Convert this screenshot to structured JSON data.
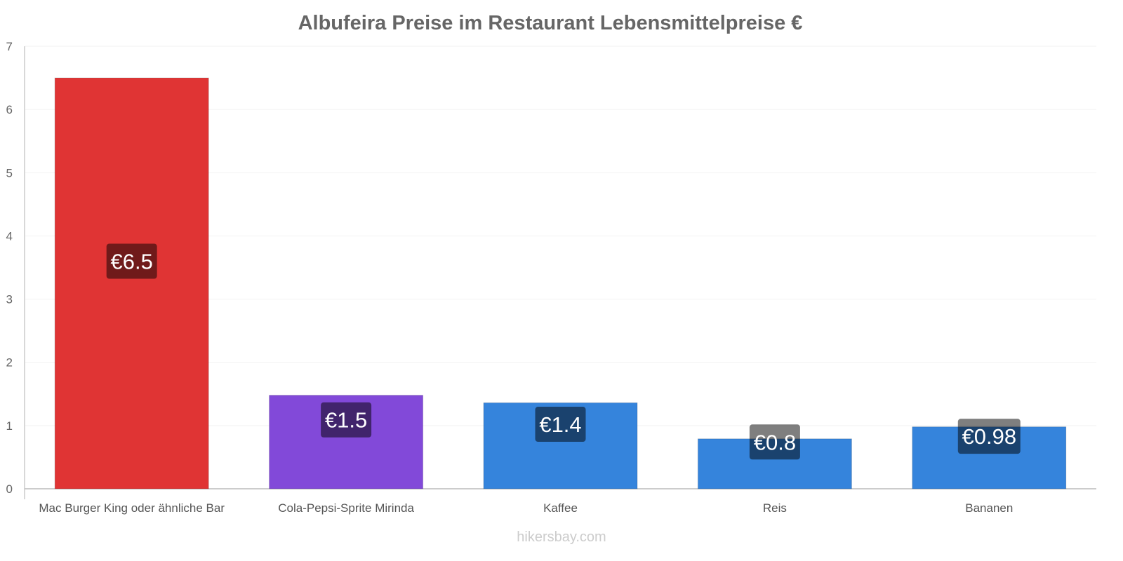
{
  "chart_data": {
    "type": "bar",
    "title": "Albufeira Preise im Restaurant Lebensmittelpreise €",
    "categories": [
      "Mac Burger King oder ähnliche Bar",
      "Cola-Pepsi-Sprite Mirinda",
      "Kaffee",
      "Reis",
      "Bananen"
    ],
    "values": [
      6.5,
      1.48,
      1.36,
      0.79,
      0.98
    ],
    "data_labels": [
      "€6.5",
      "€1.5",
      "€1.4",
      "€0.8",
      "€0.98"
    ],
    "colors": [
      "#e03434",
      "#8249d9",
      "#3584dc",
      "#3584dc",
      "#3584dc"
    ],
    "ylim": [
      0,
      7
    ],
    "yticks": [
      "0",
      "1",
      "2",
      "3",
      "4",
      "5",
      "6",
      "7"
    ],
    "xlabel": "",
    "ylabel": "",
    "grid": true
  },
  "watermark": "hikersbay.com"
}
